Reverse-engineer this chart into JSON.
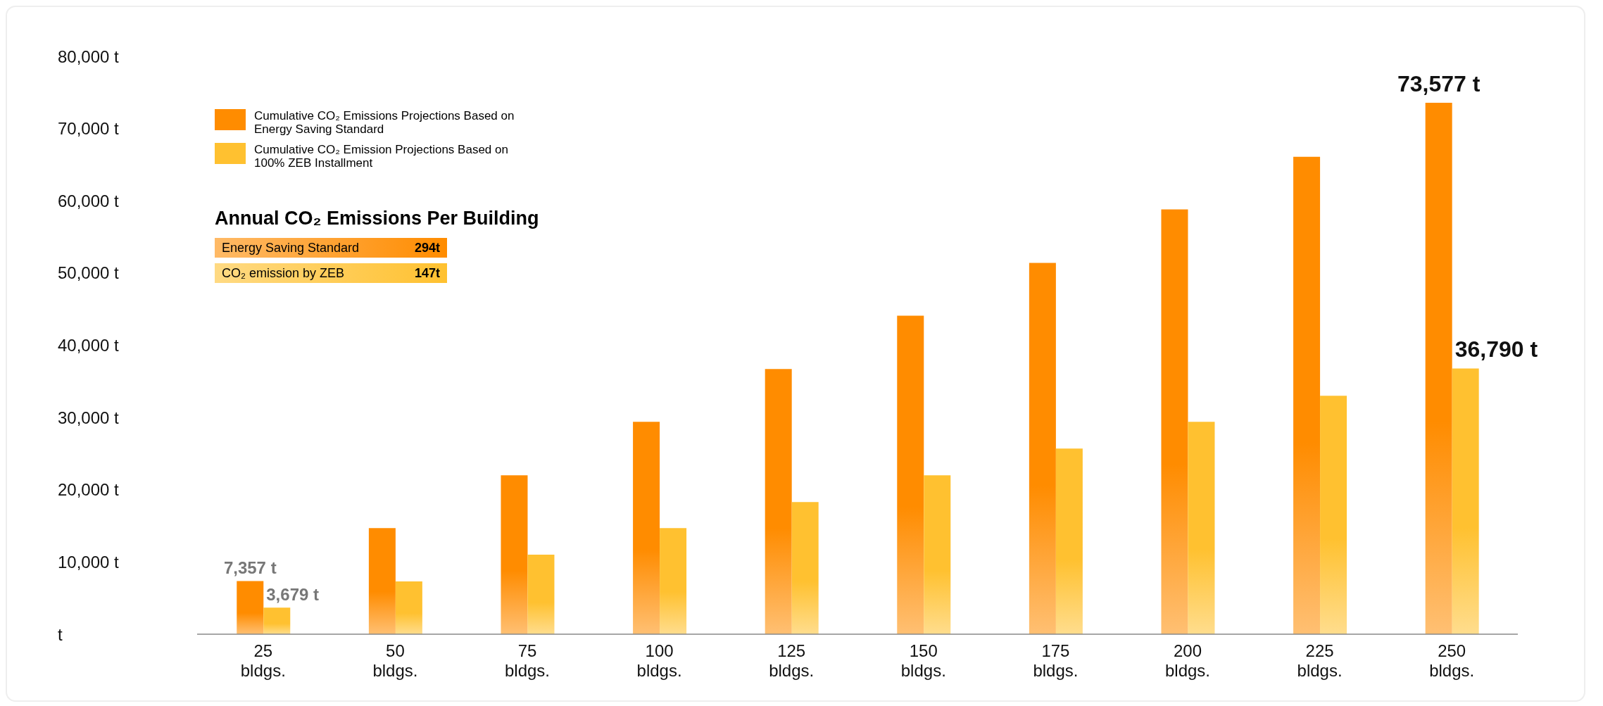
{
  "chart_data": {
    "type": "bar",
    "categories": [
      "25 bldgs.",
      "50 bldgs.",
      "75 bldgs.",
      "100 bldgs.",
      "125 bldgs.",
      "150 bldgs.",
      "175 bldgs.",
      "200 bldgs.",
      "225 bldgs.",
      "250 bldgs."
    ],
    "series": [
      {
        "name": "Cumulative CO₂ Emissions Projections Based on Energy Saving Standard",
        "color": "#ff8c00",
        "values": [
          7357,
          14700,
          22000,
          29400,
          36700,
          44100,
          51400,
          58800,
          66100,
          73577
        ],
        "value_labels": [
          "7,357 t",
          null,
          null,
          null,
          null,
          null,
          null,
          null,
          null,
          "73,577 t"
        ]
      },
      {
        "name": "Cumulative CO₂ Emission Projections Based on 100% ZEB Installment",
        "color": "#ffc130",
        "values": [
          3679,
          7300,
          11000,
          14700,
          18300,
          22000,
          25700,
          29400,
          33000,
          36790
        ],
        "value_labels": [
          "3,679 t",
          null,
          null,
          null,
          null,
          null,
          null,
          null,
          null,
          "36,790 t"
        ]
      }
    ],
    "ylim": [
      0,
      80000
    ],
    "yticks": [
      {
        "value": 0,
        "label": "t"
      },
      {
        "value": 10000,
        "label": "10,000 t"
      },
      {
        "value": 20000,
        "label": "20,000 t"
      },
      {
        "value": 30000,
        "label": "30,000 t"
      },
      {
        "value": 40000,
        "label": "40,000 t"
      },
      {
        "value": 50000,
        "label": "50,000 t"
      },
      {
        "value": 60000,
        "label": "60,000 t"
      },
      {
        "value": 70000,
        "label": "70,000 t"
      },
      {
        "value": 80000,
        "label": "80,000 t"
      }
    ],
    "grid": false,
    "legend": "top left",
    "annotations": [
      "Annual CO₂ Emissions Per Building",
      "Energy Saving Standard",
      "294t",
      "CO₂ emission by ZEB",
      "147t"
    ]
  }
}
